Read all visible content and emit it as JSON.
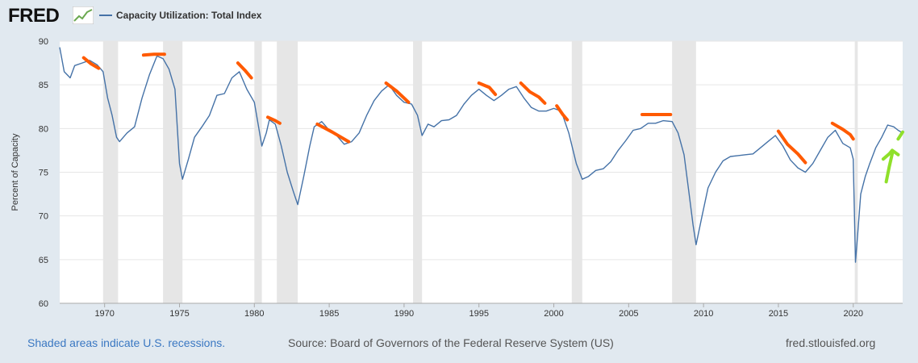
{
  "header": {
    "logo_text": "FRED",
    "logo_icon": "line-chart-icon",
    "series_legend": "Capacity Utilization: Total Index"
  },
  "colors": {
    "series": "#4572a7",
    "recession": "#e6e6e6",
    "annotation_orange": "#ff5a00",
    "annotation_green": "#8fe02a",
    "plot_bg": "#ffffff",
    "page_bg": "#e1e9f0"
  },
  "footer": {
    "recession_note": "Shaded areas indicate U.S. recessions.",
    "source": "Source: Board of Governors of the Federal Reserve System (US)",
    "site": "fred.stlouisfed.org"
  },
  "chart_data": {
    "type": "line",
    "title": "Capacity Utilization: Total Index",
    "ylabel": "Percent of Capacity",
    "xlabel": "",
    "xlim": [
      1967.0,
      2023.3
    ],
    "ylim": [
      60,
      90
    ],
    "grid": "horizontal",
    "legend_position": "top-left",
    "x_ticks": [
      1970,
      1975,
      1980,
      1985,
      1990,
      1995,
      2000,
      2005,
      2010,
      2015,
      2020
    ],
    "y_ticks": [
      60,
      65,
      70,
      75,
      80,
      85,
      90
    ],
    "recessions": [
      [
        1969.9,
        1970.9
      ],
      [
        1973.9,
        1975.2
      ],
      [
        1980.0,
        1980.5
      ],
      [
        1981.5,
        1982.9
      ],
      [
        1990.6,
        1991.2
      ],
      [
        2001.2,
        2001.9
      ],
      [
        2007.9,
        2009.5
      ],
      [
        2020.1,
        2020.3
      ]
    ],
    "series": [
      {
        "name": "Capacity Utilization: Total Index",
        "x": [
          1967.0,
          1967.3,
          1967.7,
          1968.0,
          1968.5,
          1969.0,
          1969.5,
          1969.9,
          1970.2,
          1970.5,
          1970.8,
          1971.0,
          1971.5,
          1972.0,
          1972.5,
          1973.0,
          1973.5,
          1973.9,
          1974.3,
          1974.7,
          1975.0,
          1975.2,
          1975.6,
          1976.0,
          1976.5,
          1977.0,
          1977.5,
          1978.0,
          1978.5,
          1979.0,
          1979.5,
          1980.0,
          1980.3,
          1980.5,
          1980.8,
          1981.0,
          1981.4,
          1981.8,
          1982.2,
          1982.6,
          1982.9,
          1983.3,
          1983.7,
          1984.0,
          1984.5,
          1985.0,
          1985.5,
          1986.0,
          1986.5,
          1987.0,
          1987.5,
          1988.0,
          1988.5,
          1989.0,
          1989.5,
          1990.0,
          1990.5,
          1990.9,
          1991.2,
          1991.6,
          1992.0,
          1992.5,
          1993.0,
          1993.5,
          1994.0,
          1994.5,
          1995.0,
          1995.5,
          1996.0,
          1996.5,
          1997.0,
          1997.5,
          1998.0,
          1998.5,
          1999.0,
          1999.5,
          2000.0,
          2000.5,
          2001.0,
          2001.5,
          2001.9,
          2002.3,
          2002.8,
          2003.3,
          2003.8,
          2004.3,
          2004.8,
          2005.3,
          2005.8,
          2006.3,
          2006.8,
          2007.3,
          2007.9,
          2008.3,
          2008.7,
          2009.0,
          2009.3,
          2009.5,
          2009.9,
          2010.3,
          2010.8,
          2011.3,
          2011.8,
          2012.3,
          2012.8,
          2013.3,
          2013.8,
          2014.3,
          2014.8,
          2015.3,
          2015.8,
          2016.3,
          2016.8,
          2017.3,
          2017.8,
          2018.3,
          2018.8,
          2019.3,
          2019.8,
          2020.0,
          2020.15,
          2020.3,
          2020.5,
          2020.8,
          2021.1,
          2021.5,
          2021.9,
          2022.3,
          2022.7,
          2023.0,
          2023.3
        ],
        "values": [
          89.3,
          86.5,
          85.8,
          87.2,
          87.5,
          87.8,
          87.3,
          86.5,
          83.5,
          81.5,
          79.0,
          78.5,
          79.5,
          80.2,
          83.5,
          86.2,
          88.3,
          88.0,
          86.8,
          84.5,
          76.0,
          74.2,
          76.5,
          79.0,
          80.2,
          81.5,
          83.8,
          84.0,
          85.8,
          86.5,
          84.5,
          83.0,
          80.0,
          78.0,
          79.5,
          81.0,
          80.5,
          78.0,
          75.0,
          72.8,
          71.3,
          74.5,
          78.0,
          80.2,
          80.8,
          79.8,
          79.2,
          78.2,
          78.5,
          79.5,
          81.5,
          83.2,
          84.3,
          85.0,
          83.8,
          83.0,
          82.8,
          81.5,
          79.2,
          80.5,
          80.2,
          80.9,
          81.0,
          81.5,
          82.8,
          83.8,
          84.5,
          83.8,
          83.2,
          83.8,
          84.5,
          84.8,
          83.5,
          82.4,
          82.0,
          82.0,
          82.3,
          82.0,
          79.5,
          76.0,
          74.2,
          74.5,
          75.2,
          75.4,
          76.2,
          77.5,
          78.6,
          79.8,
          80.0,
          80.6,
          80.6,
          80.9,
          80.8,
          79.5,
          77.0,
          73.0,
          69.0,
          66.7,
          70.0,
          73.2,
          75.0,
          76.3,
          76.8,
          76.9,
          77.0,
          77.1,
          77.8,
          78.5,
          79.2,
          78.0,
          76.4,
          75.5,
          75.0,
          76.0,
          77.5,
          79.0,
          79.8,
          78.3,
          77.8,
          76.5,
          64.7,
          68.0,
          72.5,
          74.5,
          76.0,
          77.8,
          79.0,
          80.4,
          80.2,
          79.8,
          79.5
        ]
      }
    ],
    "annotations": [
      {
        "color": "orange",
        "points": [
          [
            1968.6,
            88.1
          ],
          [
            1969.1,
            87.4
          ],
          [
            1969.6,
            86.9
          ]
        ]
      },
      {
        "color": "orange",
        "points": [
          [
            1972.6,
            88.4
          ],
          [
            1973.3,
            88.5
          ],
          [
            1974.0,
            88.5
          ]
        ]
      },
      {
        "color": "orange",
        "points": [
          [
            1978.9,
            87.5
          ],
          [
            1979.4,
            86.6
          ],
          [
            1979.8,
            85.8
          ]
        ]
      },
      {
        "color": "orange",
        "points": [
          [
            1980.9,
            81.3
          ],
          [
            1981.4,
            80.9
          ],
          [
            1981.7,
            80.6
          ]
        ]
      },
      {
        "color": "orange",
        "points": [
          [
            1984.2,
            80.5
          ],
          [
            1985.2,
            79.6
          ],
          [
            1986.3,
            78.5
          ]
        ]
      },
      {
        "color": "orange",
        "points": [
          [
            1988.8,
            85.2
          ],
          [
            1989.5,
            84.3
          ],
          [
            1990.3,
            83.0
          ]
        ]
      },
      {
        "color": "orange",
        "points": [
          [
            1995.0,
            85.2
          ],
          [
            1995.7,
            84.7
          ],
          [
            1996.1,
            83.9
          ]
        ]
      },
      {
        "color": "orange",
        "points": [
          [
            1997.8,
            85.2
          ],
          [
            1998.4,
            84.2
          ],
          [
            1999.0,
            83.6
          ],
          [
            1999.4,
            82.9
          ]
        ]
      },
      {
        "color": "orange",
        "points": [
          [
            2000.2,
            82.6
          ],
          [
            2000.6,
            81.6
          ],
          [
            2000.9,
            81.0
          ]
        ]
      },
      {
        "color": "orange",
        "points": [
          [
            2005.9,
            81.6
          ],
          [
            2006.9,
            81.6
          ],
          [
            2007.8,
            81.6
          ]
        ]
      },
      {
        "color": "orange",
        "points": [
          [
            2015.0,
            79.7
          ],
          [
            2015.6,
            78.2
          ],
          [
            2016.3,
            77.1
          ],
          [
            2016.8,
            76.1
          ]
        ]
      },
      {
        "color": "orange",
        "points": [
          [
            2018.6,
            80.6
          ],
          [
            2019.3,
            79.9
          ],
          [
            2019.8,
            79.3
          ],
          [
            2020.0,
            78.8
          ]
        ]
      },
      {
        "color": "green",
        "points": [
          [
            2022.0,
            76.5
          ],
          [
            2022.4,
            77.1
          ],
          [
            2022.6,
            77.5
          ],
          [
            2023.0,
            77.0
          ]
        ]
      },
      {
        "color": "green",
        "points": [
          [
            2022.2,
            73.9
          ],
          [
            2022.4,
            75.6
          ],
          [
            2022.6,
            77.1
          ]
        ]
      },
      {
        "color": "green",
        "points": [
          [
            2023.0,
            78.8
          ],
          [
            2023.3,
            79.6
          ]
        ]
      }
    ]
  }
}
